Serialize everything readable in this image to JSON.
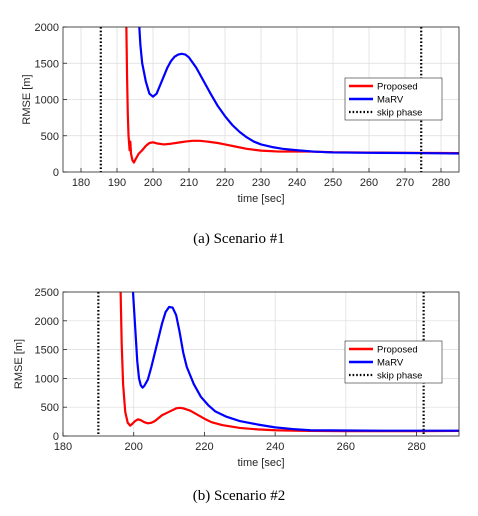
{
  "chart_data": [
    {
      "type": "line",
      "caption": "(a)  Scenario  #1",
      "xlabel": "time [sec]",
      "ylabel": "RMSE [m]",
      "xlim": [
        175,
        285
      ],
      "ylim": [
        0,
        2000
      ],
      "xticks": [
        180,
        190,
        200,
        210,
        220,
        230,
        240,
        250,
        260,
        270,
        280
      ],
      "yticks": [
        0,
        500,
        1000,
        1500,
        2000
      ],
      "grid": true,
      "legend_position": "top-right",
      "vlines": [
        185.5,
        274.5
      ],
      "series": [
        {
          "name": "Proposed",
          "color": "#ff0000",
          "points": [
            [
              192.6,
              2000
            ],
            [
              192.8,
              1300
            ],
            [
              193.0,
              800
            ],
            [
              193.2,
              500
            ],
            [
              193.5,
              300
            ],
            [
              193.7,
              420
            ],
            [
              193.9,
              250
            ],
            [
              194.3,
              160
            ],
            [
              194.7,
              130
            ],
            [
              195.2,
              180
            ],
            [
              196,
              250
            ],
            [
              197,
              300
            ],
            [
              198,
              360
            ],
            [
              199,
              400
            ],
            [
              200,
              410
            ],
            [
              201,
              395
            ],
            [
              203,
              380
            ],
            [
              205,
              390
            ],
            [
              207,
              405
            ],
            [
              209,
              420
            ],
            [
              211,
              430
            ],
            [
              213,
              430
            ],
            [
              215,
              420
            ],
            [
              218,
              400
            ],
            [
              220,
              380
            ],
            [
              223,
              350
            ],
            [
              226,
              320
            ],
            [
              230,
              295
            ],
            [
              235,
              282
            ],
            [
              240,
              285
            ],
            [
              245,
              280
            ],
            [
              250,
              272
            ],
            [
              260,
              268
            ],
            [
              270,
              265
            ],
            [
              280,
              262
            ],
            [
              285,
              260
            ]
          ]
        },
        {
          "name": "MaRV",
          "color": "#0000ff",
          "points": [
            [
              196.2,
              2000
            ],
            [
              196.5,
              1750
            ],
            [
              197,
              1500
            ],
            [
              198,
              1250
            ],
            [
              199,
              1080
            ],
            [
              200,
              1040
            ],
            [
              201,
              1080
            ],
            [
              202,
              1200
            ],
            [
              203,
              1320
            ],
            [
              204,
              1440
            ],
            [
              205,
              1530
            ],
            [
              206,
              1590
            ],
            [
              207,
              1620
            ],
            [
              208,
              1630
            ],
            [
              209,
              1620
            ],
            [
              210,
              1580
            ],
            [
              212,
              1440
            ],
            [
              214,
              1260
            ],
            [
              216,
              1080
            ],
            [
              218,
              910
            ],
            [
              220,
              770
            ],
            [
              222,
              650
            ],
            [
              224,
              555
            ],
            [
              226,
              480
            ],
            [
              228,
              420
            ],
            [
              230,
              380
            ],
            [
              233,
              345
            ],
            [
              236,
              320
            ],
            [
              240,
              300
            ],
            [
              245,
              280
            ],
            [
              250,
              270
            ],
            [
              260,
              265
            ],
            [
              270,
              262
            ],
            [
              280,
              258
            ],
            [
              285,
              255
            ]
          ]
        },
        {
          "name": "skip phase",
          "color": "#000000",
          "style": "dotted"
        }
      ]
    },
    {
      "type": "line",
      "caption": "(b)  Scenario  #2",
      "xlabel": "time [sec]",
      "ylabel": "RMSE [m]",
      "xlim": [
        180,
        292
      ],
      "ylim": [
        0,
        2500
      ],
      "xticks": [
        180,
        200,
        220,
        240,
        260,
        280
      ],
      "yticks": [
        0,
        500,
        1000,
        1500,
        2000,
        2500
      ],
      "grid": true,
      "legend_position": "top-right",
      "vlines": [
        190,
        282
      ],
      "series": [
        {
          "name": "Proposed",
          "color": "#ff0000",
          "points": [
            [
              196.3,
              2500
            ],
            [
              196.6,
              1600
            ],
            [
              197,
              900
            ],
            [
              197.6,
              420
            ],
            [
              198.3,
              230
            ],
            [
              199,
              180
            ],
            [
              199.6,
              210
            ],
            [
              200.4,
              260
            ],
            [
              201.2,
              290
            ],
            [
              202,
              275
            ],
            [
              203,
              240
            ],
            [
              204,
              220
            ],
            [
              205,
              230
            ],
            [
              206,
              260
            ],
            [
              207,
              310
            ],
            [
              208,
              360
            ],
            [
              210,
              420
            ],
            [
              212,
              480
            ],
            [
              213,
              490
            ],
            [
              214,
              480
            ],
            [
              216,
              440
            ],
            [
              218,
              370
            ],
            [
              220,
              300
            ],
            [
              222,
              240
            ],
            [
              225,
              190
            ],
            [
              230,
              140
            ],
            [
              235,
              115
            ],
            [
              240,
              100
            ],
            [
              245,
              92
            ],
            [
              250,
              88
            ],
            [
              260,
              85
            ],
            [
              270,
              85
            ],
            [
              280,
              85
            ],
            [
              292,
              88
            ]
          ]
        },
        {
          "name": "MaRV",
          "color": "#0000ff",
          "points": [
            [
              199.8,
              2500
            ],
            [
              200.2,
              2100
            ],
            [
              200.6,
              1700
            ],
            [
              201,
              1300
            ],
            [
              201.5,
              1000
            ],
            [
              202,
              880
            ],
            [
              202.5,
              840
            ],
            [
              203,
              870
            ],
            [
              204,
              980
            ],
            [
              205,
              1200
            ],
            [
              206,
              1450
            ],
            [
              207,
              1700
            ],
            [
              208,
              1950
            ],
            [
              209,
              2150
            ],
            [
              210,
              2240
            ],
            [
              211,
              2230
            ],
            [
              212,
              2100
            ],
            [
              213,
              1800
            ],
            [
              214,
              1450
            ],
            [
              215,
              1200
            ],
            [
              217,
              900
            ],
            [
              219,
              680
            ],
            [
              221,
              540
            ],
            [
              223,
              430
            ],
            [
              226,
              340
            ],
            [
              230,
              260
            ],
            [
              235,
              200
            ],
            [
              240,
              150
            ],
            [
              245,
              120
            ],
            [
              250,
              100
            ],
            [
              260,
              95
            ],
            [
              270,
              92
            ],
            [
              280,
              92
            ],
            [
              292,
              92
            ]
          ]
        },
        {
          "name": "skip phase",
          "color": "#000000",
          "style": "dotted"
        }
      ]
    }
  ]
}
